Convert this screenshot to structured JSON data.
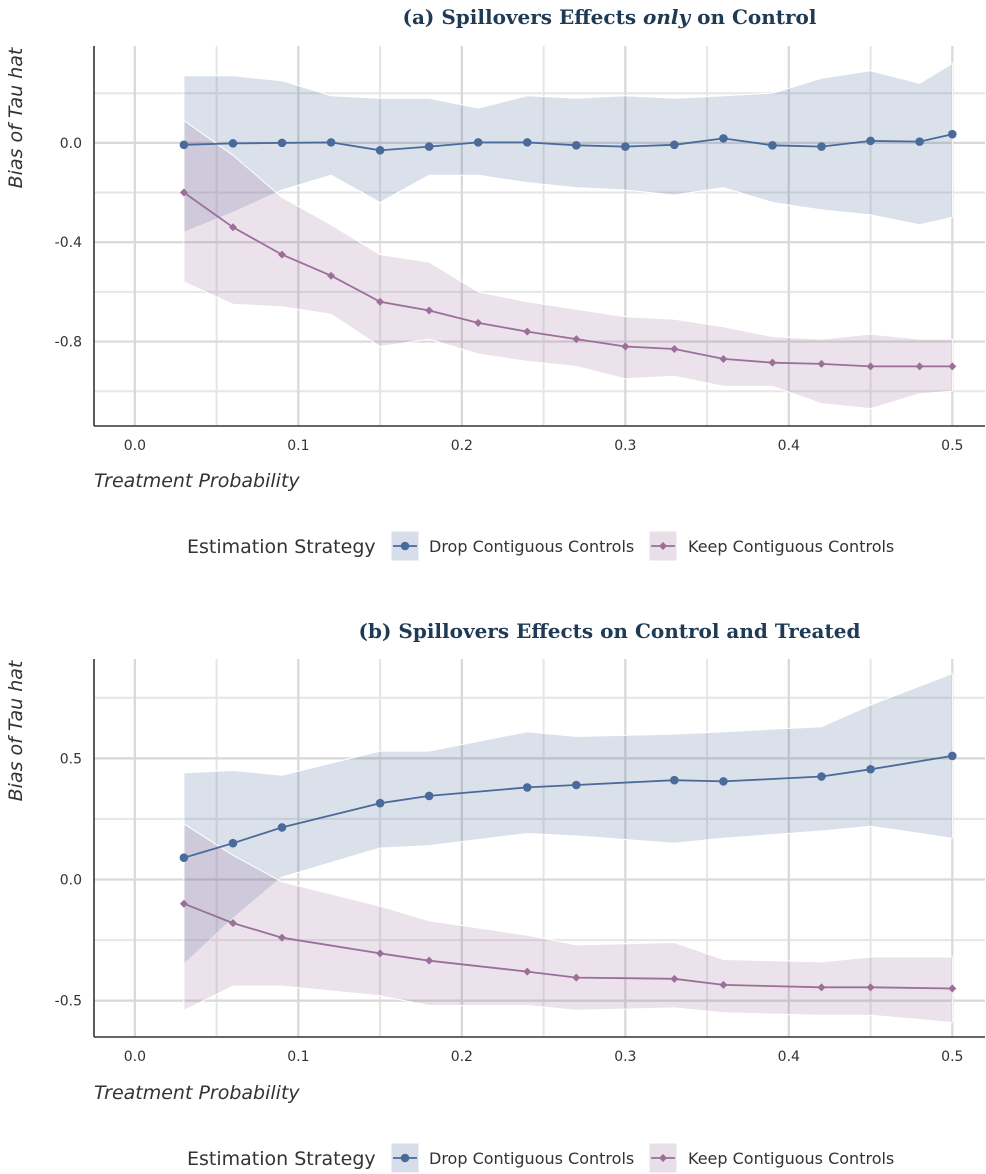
{
  "chart_data": [
    {
      "type": "line",
      "title_parts": [
        "(a) Spillovers Effects ",
        "only",
        " on Control"
      ],
      "xlabel": "Treatment Probability",
      "ylabel": "Bias of Tau hat",
      "xlim": [
        -0.025,
        0.52
      ],
      "ylim": [
        -1.14,
        0.39
      ],
      "x_ticks": [
        0.0,
        0.1,
        0.2,
        0.3,
        0.4,
        0.5
      ],
      "x_tick_labels": [
        "0.0",
        "0.1",
        "0.2",
        "0.3",
        "0.4",
        "0.5"
      ],
      "y_ticks": [
        0.0,
        -0.4,
        -0.8
      ],
      "y_tick_labels": [
        "0.0",
        "-0.4",
        "-0.8"
      ],
      "grid": true,
      "legend": {
        "title": "Estimation Strategy",
        "position": "bottom",
        "entries": [
          "Drop Contiguous Controls",
          "Keep Contiguous Controls"
        ]
      },
      "series": [
        {
          "name": "Drop Contiguous Controls",
          "color": "#4a6a9a",
          "marker": "circle",
          "x": [
            0.03,
            0.06,
            0.09,
            0.12,
            0.15,
            0.18,
            0.21,
            0.24,
            0.27,
            0.3,
            0.33,
            0.36,
            0.39,
            0.42,
            0.45,
            0.48,
            0.5
          ],
          "y": [
            -0.008,
            -0.002,
            0.0,
            0.002,
            -0.03,
            -0.015,
            0.002,
            0.002,
            -0.01,
            -0.015,
            -0.008,
            0.018,
            -0.01,
            -0.015,
            0.008,
            0.005,
            0.035
          ],
          "upper": [
            0.27,
            0.27,
            0.25,
            0.19,
            0.18,
            0.18,
            0.14,
            0.19,
            0.18,
            0.19,
            0.18,
            0.19,
            0.2,
            0.26,
            0.29,
            0.24,
            0.32
          ],
          "lower": [
            -0.36,
            -0.28,
            -0.19,
            -0.13,
            -0.24,
            -0.13,
            -0.13,
            -0.16,
            -0.18,
            -0.19,
            -0.21,
            -0.18,
            -0.24,
            -0.27,
            -0.29,
            -0.33,
            -0.3
          ]
        },
        {
          "name": "Keep Contiguous Controls",
          "color": "#9b6f99",
          "marker": "diamond",
          "x": [
            0.03,
            0.06,
            0.09,
            0.12,
            0.15,
            0.18,
            0.21,
            0.24,
            0.27,
            0.3,
            0.33,
            0.36,
            0.39,
            0.42,
            0.45,
            0.48,
            0.5
          ],
          "y": [
            -0.2,
            -0.34,
            -0.45,
            -0.535,
            -0.64,
            -0.675,
            -0.725,
            -0.76,
            -0.79,
            -0.82,
            -0.83,
            -0.87,
            -0.885,
            -0.89,
            -0.9,
            -0.9,
            -0.9
          ],
          "upper": [
            0.09,
            -0.05,
            -0.22,
            -0.33,
            -0.45,
            -0.48,
            -0.6,
            -0.64,
            -0.67,
            -0.7,
            -0.71,
            -0.74,
            -0.78,
            -0.79,
            -0.77,
            -0.79,
            -0.79
          ],
          "lower": [
            -0.56,
            -0.65,
            -0.66,
            -0.69,
            -0.82,
            -0.79,
            -0.85,
            -0.88,
            -0.9,
            -0.95,
            -0.94,
            -0.98,
            -0.98,
            -1.05,
            -1.07,
            -1.01,
            -1.0
          ]
        }
      ]
    },
    {
      "type": "line",
      "title_parts": [
        "(b) Spillovers Effects on Control and Treated"
      ],
      "xlabel": "Treatment Probability",
      "ylabel": "Bias of Tau hat",
      "xlim": [
        -0.025,
        0.52
      ],
      "ylim": [
        -0.65,
        0.91
      ],
      "x_ticks": [
        0.0,
        0.1,
        0.2,
        0.3,
        0.4,
        0.5
      ],
      "x_tick_labels": [
        "0.0",
        "0.1",
        "0.2",
        "0.3",
        "0.4",
        "0.5"
      ],
      "y_ticks": [
        0.5,
        0.0,
        -0.5
      ],
      "y_tick_labels": [
        "0.5",
        "0.0",
        "-0.5"
      ],
      "grid": true,
      "legend": {
        "title": "Estimation Strategy",
        "position": "bottom",
        "entries": [
          "Drop Contiguous Controls",
          "Keep Contiguous Controls"
        ]
      },
      "series": [
        {
          "name": "Drop Contiguous Controls",
          "color": "#4a6a9a",
          "marker": "circle",
          "x": [
            0.03,
            0.06,
            0.09,
            0.15,
            0.18,
            0.24,
            0.27,
            0.33,
            0.36,
            0.42,
            0.45,
            0.5
          ],
          "y": [
            0.09,
            0.15,
            0.215,
            0.315,
            0.345,
            0.38,
            0.39,
            0.41,
            0.405,
            0.425,
            0.455,
            0.51
          ],
          "upper": [
            0.44,
            0.45,
            0.43,
            0.53,
            0.53,
            0.61,
            0.59,
            0.6,
            0.61,
            0.63,
            0.72,
            0.85
          ],
          "lower": [
            -0.35,
            -0.16,
            0.01,
            0.13,
            0.14,
            0.19,
            0.18,
            0.15,
            0.17,
            0.2,
            0.22,
            0.17
          ]
        },
        {
          "name": "Keep Contiguous Controls",
          "color": "#9b6f99",
          "marker": "diamond",
          "x": [
            0.03,
            0.06,
            0.09,
            0.15,
            0.18,
            0.24,
            0.27,
            0.33,
            0.36,
            0.42,
            0.45,
            0.5
          ],
          "y": [
            -0.1,
            -0.18,
            -0.24,
            -0.305,
            -0.335,
            -0.38,
            -0.405,
            -0.41,
            -0.435,
            -0.445,
            -0.445,
            -0.45
          ],
          "upper": [
            0.23,
            0.1,
            -0.01,
            -0.11,
            -0.17,
            -0.23,
            -0.27,
            -0.26,
            -0.33,
            -0.34,
            -0.32,
            -0.32
          ],
          "lower": [
            -0.54,
            -0.44,
            -0.44,
            -0.48,
            -0.52,
            -0.52,
            -0.54,
            -0.53,
            -0.55,
            -0.56,
            -0.56,
            -0.59
          ]
        }
      ]
    }
  ]
}
